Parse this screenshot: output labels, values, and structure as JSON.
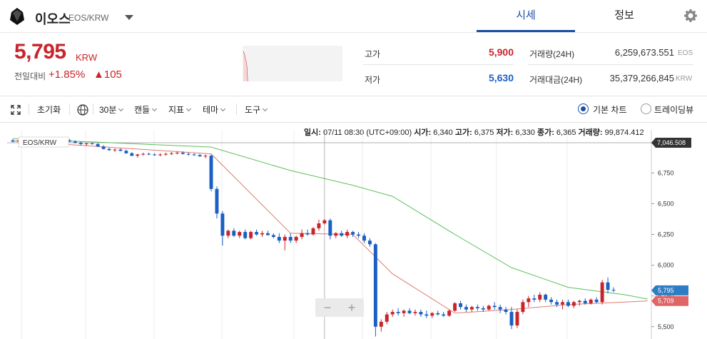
{
  "header": {
    "coin_name": "이오스",
    "coin_pair": "EOS/KRW",
    "tabs": [
      "시세",
      "정보"
    ]
  },
  "price": {
    "current": "5,795",
    "unit": "KRW",
    "change_label": "전일대비",
    "change_pct": "+1.85%",
    "change_abs": "▲105"
  },
  "stats": {
    "high_label": "고가",
    "high_value": "5,900",
    "low_label": "저가",
    "low_value": "5,630",
    "volume_label": "거래량(24H)",
    "volume_value": "6,259,673.551",
    "volume_unit": "EOS",
    "amount_label": "거래대금(24H)",
    "amount_value": "35,379,266,845",
    "amount_unit": "KRW"
  },
  "toolbar": {
    "reset": "초기화",
    "interval": "30분",
    "candle": "캔들",
    "indicator": "지표",
    "theme": "테마",
    "tools": "도구",
    "basic_chart": "기본 차트",
    "trading_view": "트레이딩뷰"
  },
  "chart_info": {
    "time_label": "일시:",
    "time_value": "07/11 08:30 (UTC+09:00)",
    "open_label": "시가:",
    "open_value": "6,340",
    "high_label": "고가:",
    "high_value": "6,375",
    "low_label": "저가:",
    "low_value": "6,330",
    "close_label": "종가:",
    "close_value": "6,365",
    "volume_label": "거래량:",
    "volume_value": "99,874.412"
  },
  "colors": {
    "up": "#c8242b",
    "down": "#1a5fc4",
    "accent": "#1a4fa0",
    "ma_short": "#e07a6e",
    "ma_long": "#5cbf5c",
    "current_tag": "#2d7dc4",
    "ma_tag": "#e06666"
  },
  "chart_data": {
    "type": "candlestick",
    "legend": "EOS/KRW",
    "y_ticks": [
      "6,750",
      "6,500",
      "6,250",
      "6,000",
      "5,750",
      "5,500"
    ],
    "ylim": [
      5400,
      7100
    ],
    "crosshair_price": "7,046.508",
    "current_price_tag": "5,795",
    "ma_price_tag": "5,709",
    "candles": [
      [
        7015,
        7025,
        7000,
        7005
      ],
      [
        7005,
        7020,
        6990,
        7015
      ],
      [
        7015,
        7030,
        7000,
        7005
      ],
      [
        7000,
        7015,
        6990,
        7010
      ],
      [
        7010,
        7025,
        7000,
        7015
      ],
      [
        7015,
        7030,
        7005,
        7020
      ],
      [
        7020,
        7035,
        7005,
        7010
      ],
      [
        7010,
        7020,
        6995,
        7000
      ],
      [
        7000,
        7015,
        6985,
        7005
      ],
      [
        7005,
        7020,
        6995,
        7015
      ],
      [
        7015,
        7025,
        7000,
        7005
      ],
      [
        7005,
        7015,
        6990,
        6995
      ],
      [
        6995,
        7005,
        6975,
        6985
      ],
      [
        6985,
        6995,
        6970,
        6990
      ],
      [
        6990,
        7000,
        6980,
        6985
      ],
      [
        6985,
        6995,
        6960,
        6965
      ],
      [
        6965,
        6975,
        6940,
        6945
      ],
      [
        6945,
        6955,
        6930,
        6935
      ],
      [
        6935,
        6950,
        6920,
        6940
      ],
      [
        6940,
        6950,
        6925,
        6930
      ],
      [
        6930,
        6940,
        6905,
        6910
      ],
      [
        6910,
        6920,
        6885,
        6890
      ],
      [
        6890,
        6905,
        6875,
        6900
      ],
      [
        6900,
        6915,
        6890,
        6905
      ],
      [
        6905,
        6915,
        6895,
        6900
      ],
      [
        6900,
        6910,
        6890,
        6895
      ],
      [
        6895,
        6910,
        6885,
        6900
      ],
      [
        6900,
        6915,
        6890,
        6905
      ],
      [
        6905,
        6920,
        6895,
        6910
      ],
      [
        6910,
        6925,
        6900,
        6915
      ],
      [
        6915,
        6925,
        6900,
        6905
      ],
      [
        6905,
        6915,
        6890,
        6900
      ],
      [
        6900,
        6910,
        6890,
        6895
      ],
      [
        6895,
        6905,
        6880,
        6885
      ],
      [
        6885,
        6900,
        6870,
        6890
      ],
      [
        6890,
        6900,
        6600,
        6620
      ],
      [
        6620,
        6640,
        6380,
        6420
      ],
      [
        6420,
        6440,
        6160,
        6240
      ],
      [
        6240,
        6290,
        6220,
        6280
      ],
      [
        6280,
        6300,
        6230,
        6240
      ],
      [
        6240,
        6280,
        6220,
        6270
      ],
      [
        6270,
        6290,
        6210,
        6220
      ],
      [
        6220,
        6280,
        6210,
        6270
      ],
      [
        6270,
        6290,
        6240,
        6250
      ],
      [
        6250,
        6280,
        6230,
        6260
      ],
      [
        6260,
        6280,
        6240,
        6245
      ],
      [
        6245,
        6260,
        6220,
        6230
      ],
      [
        6230,
        6260,
        6180,
        6200
      ],
      [
        6200,
        6250,
        6120,
        6230
      ],
      [
        6230,
        6260,
        6180,
        6200
      ],
      [
        6200,
        6240,
        6180,
        6230
      ],
      [
        6230,
        6290,
        6210,
        6260
      ],
      [
        6260,
        6290,
        6240,
        6250
      ],
      [
        6250,
        6310,
        6240,
        6300
      ],
      [
        6300,
        6370,
        6280,
        6340
      ],
      [
        6340,
        6375,
        6330,
        6365
      ],
      [
        6365,
        6380,
        6210,
        6240
      ],
      [
        6240,
        6270,
        6220,
        6260
      ],
      [
        6260,
        6280,
        6230,
        6240
      ],
      [
        6240,
        6290,
        6220,
        6270
      ],
      [
        6270,
        6280,
        6230,
        6250
      ],
      [
        6250,
        6270,
        6220,
        6240
      ],
      [
        6240,
        6260,
        6180,
        6200
      ],
      [
        6200,
        6220,
        6150,
        6170
      ],
      [
        6170,
        6180,
        5420,
        5500
      ],
      [
        5500,
        5560,
        5460,
        5540
      ],
      [
        5540,
        5620,
        5520,
        5600
      ],
      [
        5600,
        5640,
        5580,
        5620
      ],
      [
        5620,
        5650,
        5590,
        5610
      ],
      [
        5610,
        5640,
        5580,
        5630
      ],
      [
        5630,
        5650,
        5600,
        5610
      ],
      [
        5610,
        5640,
        5590,
        5620
      ],
      [
        5620,
        5640,
        5580,
        5600
      ],
      [
        5600,
        5630,
        5570,
        5590
      ],
      [
        5590,
        5620,
        5570,
        5610
      ],
      [
        5610,
        5630,
        5590,
        5600
      ],
      [
        5600,
        5620,
        5580,
        5590
      ],
      [
        5590,
        5640,
        5580,
        5630
      ],
      [
        5630,
        5700,
        5620,
        5690
      ],
      [
        5690,
        5710,
        5640,
        5660
      ],
      [
        5660,
        5680,
        5620,
        5640
      ],
      [
        5640,
        5670,
        5620,
        5660
      ],
      [
        5660,
        5680,
        5630,
        5650
      ],
      [
        5650,
        5670,
        5620,
        5640
      ],
      [
        5640,
        5680,
        5630,
        5670
      ],
      [
        5670,
        5700,
        5640,
        5660
      ],
      [
        5660,
        5680,
        5610,
        5640
      ],
      [
        5640,
        5660,
        5600,
        5620
      ],
      [
        5620,
        5660,
        5480,
        5510
      ],
      [
        5510,
        5640,
        5490,
        5620
      ],
      [
        5620,
        5720,
        5600,
        5700
      ],
      [
        5700,
        5750,
        5660,
        5730
      ],
      [
        5730,
        5760,
        5700,
        5720
      ],
      [
        5720,
        5780,
        5700,
        5760
      ],
      [
        5760,
        5770,
        5700,
        5720
      ],
      [
        5720,
        5740,
        5680,
        5700
      ],
      [
        5700,
        5720,
        5660,
        5680
      ],
      [
        5680,
        5720,
        5640,
        5700
      ],
      [
        5700,
        5720,
        5660,
        5670
      ],
      [
        5670,
        5710,
        5650,
        5700
      ],
      [
        5700,
        5720,
        5670,
        5710
      ],
      [
        5710,
        5730,
        5680,
        5690
      ],
      [
        5690,
        5730,
        5680,
        5720
      ],
      [
        5720,
        5740,
        5690,
        5700
      ],
      [
        5700,
        5880,
        5680,
        5860
      ],
      [
        5860,
        5900,
        5770,
        5800
      ],
      [
        5800,
        5820,
        5780,
        5795
      ]
    ],
    "ma_short": [
      [
        0,
        7010
      ],
      [
        35,
        6905
      ],
      [
        49,
        6260
      ],
      [
        60,
        6250
      ],
      [
        67,
        5930
      ],
      [
        78,
        5610
      ],
      [
        88,
        5640
      ],
      [
        98,
        5680
      ],
      [
        108,
        5700
      ],
      [
        112,
        5710
      ]
    ],
    "ma_long": [
      [
        0,
        7030
      ],
      [
        35,
        6960
      ],
      [
        49,
        6770
      ],
      [
        60,
        6650
      ],
      [
        67,
        6560
      ],
      [
        78,
        6250
      ],
      [
        88,
        5980
      ],
      [
        98,
        5820
      ],
      [
        108,
        5760
      ],
      [
        112,
        5725
      ]
    ]
  }
}
